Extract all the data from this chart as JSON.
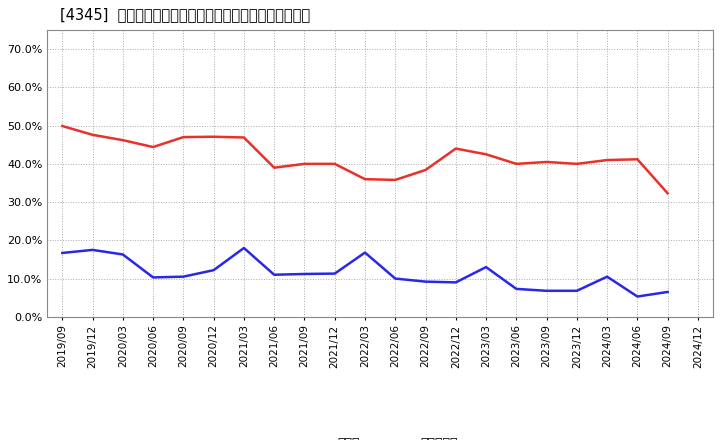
{
  "title": "[4345]  現顔金、有利子負債の総資産に対する比率の推移",
  "x_labels": [
    "2019/09",
    "2019/12",
    "2020/03",
    "2020/06",
    "2020/09",
    "2020/12",
    "2021/03",
    "2021/06",
    "2021/09",
    "2021/12",
    "2022/03",
    "2022/06",
    "2022/09",
    "2022/12",
    "2023/03",
    "2023/06",
    "2023/09",
    "2023/12",
    "2024/03",
    "2024/06",
    "2024/09",
    "2024/12"
  ],
  "genkin": [
    0.499,
    0.476,
    0.462,
    0.444,
    0.47,
    0.471,
    0.469,
    0.39,
    0.4,
    0.4,
    0.36,
    0.358,
    0.384,
    0.44,
    0.425,
    0.4,
    0.405,
    0.4,
    0.41,
    0.412,
    0.323,
    null
  ],
  "yuri": [
    0.167,
    0.175,
    0.163,
    0.103,
    0.105,
    0.122,
    0.18,
    0.11,
    0.112,
    0.113,
    0.168,
    0.1,
    0.092,
    0.09,
    0.13,
    0.073,
    0.068,
    0.068,
    0.105,
    0.053,
    0.065,
    null
  ],
  "genkin_color": "#e8312a",
  "yuri_color": "#2828e8",
  "bg_color": "#ffffff",
  "grid_color": "#aaaaaa",
  "ylim": [
    0.0,
    0.75
  ],
  "yticks": [
    0.0,
    0.1,
    0.2,
    0.3,
    0.4,
    0.5,
    0.6,
    0.7
  ],
  "legend_genkin": "現顔金",
  "legend_yuri": "有利子負債"
}
